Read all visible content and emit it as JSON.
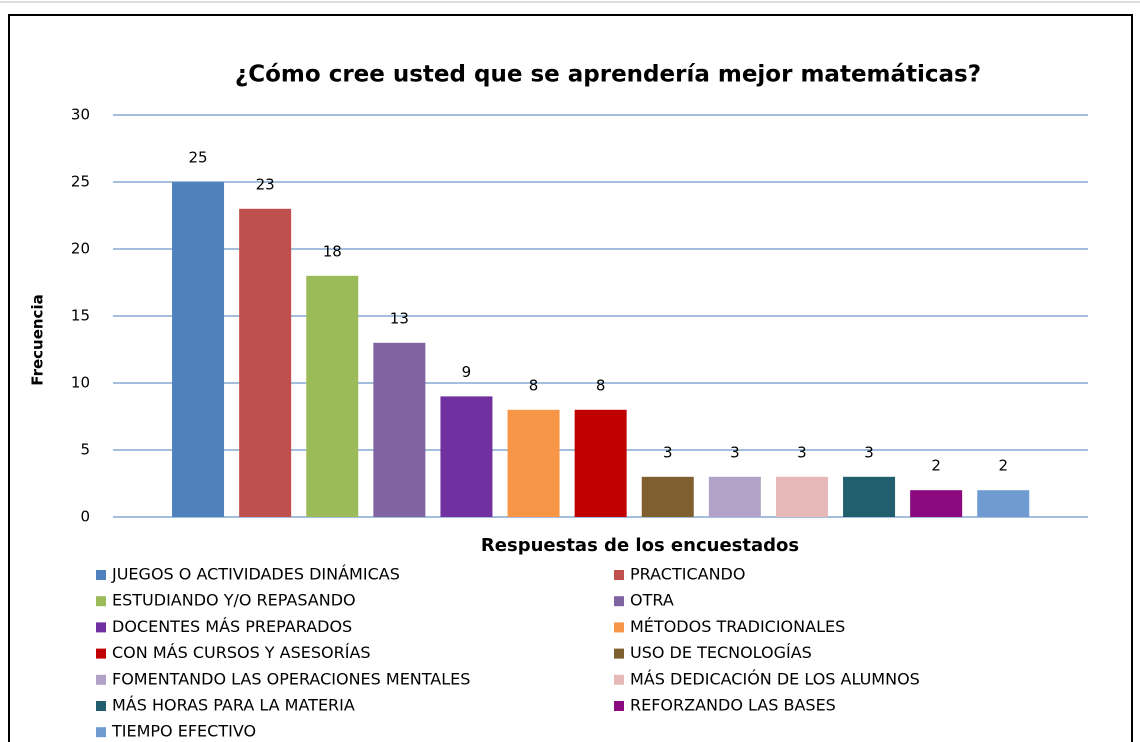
{
  "chart_data": {
    "type": "bar",
    "title": "¿Cómo cree usted que se aprendería mejor matemáticas?",
    "y_label": "Frecuencia",
    "x_label": "Respuestas de los encuestados",
    "categories": [
      "JUEGOS O ACTIVIDADES DINÁMICAS",
      "PRACTICANDO",
      "ESTUDIANDO Y/O REPASANDO",
      "OTRA",
      "DOCENTES MÁS PREPARADOS",
      "MÉTODOS TRADICIONALES",
      "CON MÁS CURSOS Y ASESORÍAS",
      "USO DE TECNOLOGÍAS",
      "FOMENTANDO LAS OPERACIONES MENTALES",
      "MÁS DEDICACIÓN DE LOS ALUMNOS",
      "MÁS HORAS PARA LA MATERIA",
      "REFORZANDO LAS BASES",
      "TIEMPO EFECTIVO"
    ],
    "values": [
      25,
      23,
      18,
      13,
      9,
      8,
      8,
      3,
      3,
      3,
      3,
      2,
      2
    ],
    "colors": [
      "#4f81bd",
      "#c0504d",
      "#9bbb59",
      "#8064a2",
      "#7030a0",
      "#f79646",
      "#c00000",
      "#7f5f2f",
      "#b3a2c7",
      "#e6b9b8",
      "#215f6e",
      "#8b0a7f",
      "#6f9bd1"
    ],
    "ylim": [
      0,
      30
    ],
    "yticks": [
      0,
      5,
      10,
      15,
      20,
      25,
      30
    ],
    "grid": true,
    "legend": "bottom"
  }
}
